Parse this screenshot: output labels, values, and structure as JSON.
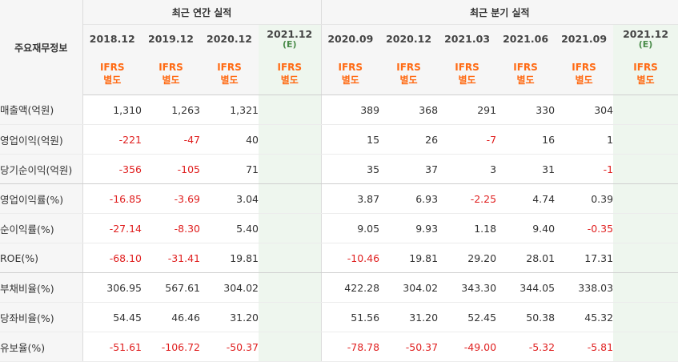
{
  "header": {
    "row_label": "주요재무정보",
    "annual_group": "최근 연간 실적",
    "quarter_group": "최근 분기 실적",
    "periods": [
      {
        "date": "2018.12",
        "estimate": ""
      },
      {
        "date": "2019.12",
        "estimate": ""
      },
      {
        "date": "2020.12",
        "estimate": ""
      },
      {
        "date": "2021.12",
        "estimate": "(E)"
      },
      {
        "date": "2020.09",
        "estimate": ""
      },
      {
        "date": "2020.12",
        "estimate": ""
      },
      {
        "date": "2021.03",
        "estimate": ""
      },
      {
        "date": "2021.06",
        "estimate": ""
      },
      {
        "date": "2021.09",
        "estimate": ""
      },
      {
        "date": "2021.12",
        "estimate": "(E)"
      }
    ],
    "ifrs_line1": "IFRS",
    "ifrs_line2": "별도"
  },
  "rows": [
    {
      "label": "매출액(억원)",
      "values": [
        "1,310",
        "1,263",
        "1,321",
        "",
        "389",
        "368",
        "291",
        "330",
        "304",
        ""
      ]
    },
    {
      "label": "영업이익(억원)",
      "values": [
        "-221",
        "-47",
        "40",
        "",
        "15",
        "26",
        "-7",
        "16",
        "1",
        ""
      ]
    },
    {
      "label": "당기순이익(억원)",
      "values": [
        "-356",
        "-105",
        "71",
        "",
        "35",
        "37",
        "3",
        "31",
        "-1",
        ""
      ]
    },
    {
      "label": "영업이익률(%)",
      "values": [
        "-16.85",
        "-3.69",
        "3.04",
        "",
        "3.87",
        "6.93",
        "-2.25",
        "4.74",
        "0.39",
        ""
      ]
    },
    {
      "label": "순이익률(%)",
      "values": [
        "-27.14",
        "-8.30",
        "5.40",
        "",
        "9.05",
        "9.93",
        "1.18",
        "9.40",
        "-0.35",
        ""
      ]
    },
    {
      "label": "ROE(%)",
      "values": [
        "-68.10",
        "-31.41",
        "19.81",
        "",
        "-10.46",
        "19.81",
        "29.20",
        "28.01",
        "17.31",
        ""
      ]
    },
    {
      "label": "부채비율(%)",
      "values": [
        "306.95",
        "567.61",
        "304.02",
        "",
        "422.28",
        "304.02",
        "343.30",
        "344.05",
        "338.03",
        ""
      ]
    },
    {
      "label": "당좌비율(%)",
      "values": [
        "54.45",
        "46.46",
        "31.20",
        "",
        "51.56",
        "31.20",
        "52.45",
        "50.38",
        "45.32",
        ""
      ]
    },
    {
      "label": "유보율(%)",
      "values": [
        "-51.61",
        "-106.72",
        "-50.37",
        "",
        "-78.78",
        "-50.37",
        "-49.00",
        "-5.32",
        "-5.81",
        ""
      ]
    }
  ],
  "colors": {
    "negative": "#e02020",
    "ifrs": "#ff6a13",
    "estimate_bg": "#eef6ee",
    "header_bg": "#f6f6f6"
  }
}
